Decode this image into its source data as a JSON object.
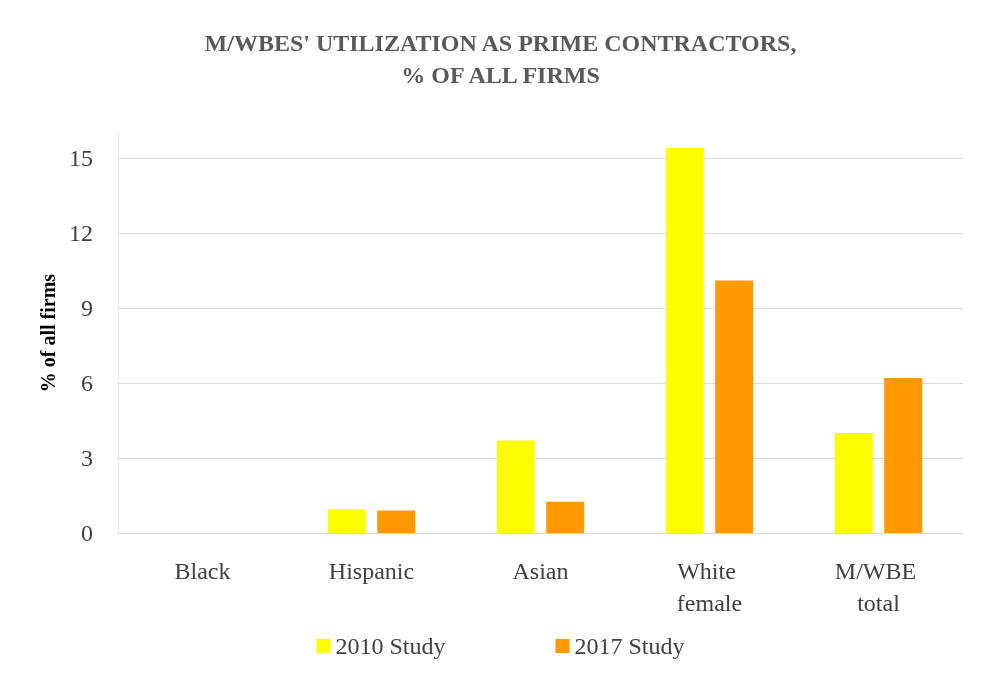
{
  "chart_data": {
    "type": "bar",
    "title": "M/WBES' UTILIZATION AS PRIME CONTRACTORS,\n% OF ALL FIRMS",
    "ylabel": "% of all firms",
    "categories": [
      "Black",
      "Hispanic",
      "Asian",
      "White female",
      "M/WBE total"
    ],
    "series": [
      {
        "name": "2010 Study",
        "color": "#ffff00",
        "values": [
          0,
          0.95,
          3.7,
          15.4,
          4.0
        ]
      },
      {
        "name": "2017 Study",
        "color": "#ff9900",
        "values": [
          0,
          0.9,
          1.25,
          10.1,
          6.2
        ]
      }
    ],
    "ylim": [
      0,
      16
    ],
    "yticks": [
      0,
      3,
      6,
      9,
      12,
      15
    ],
    "grid": "y",
    "legend": "bottom"
  }
}
